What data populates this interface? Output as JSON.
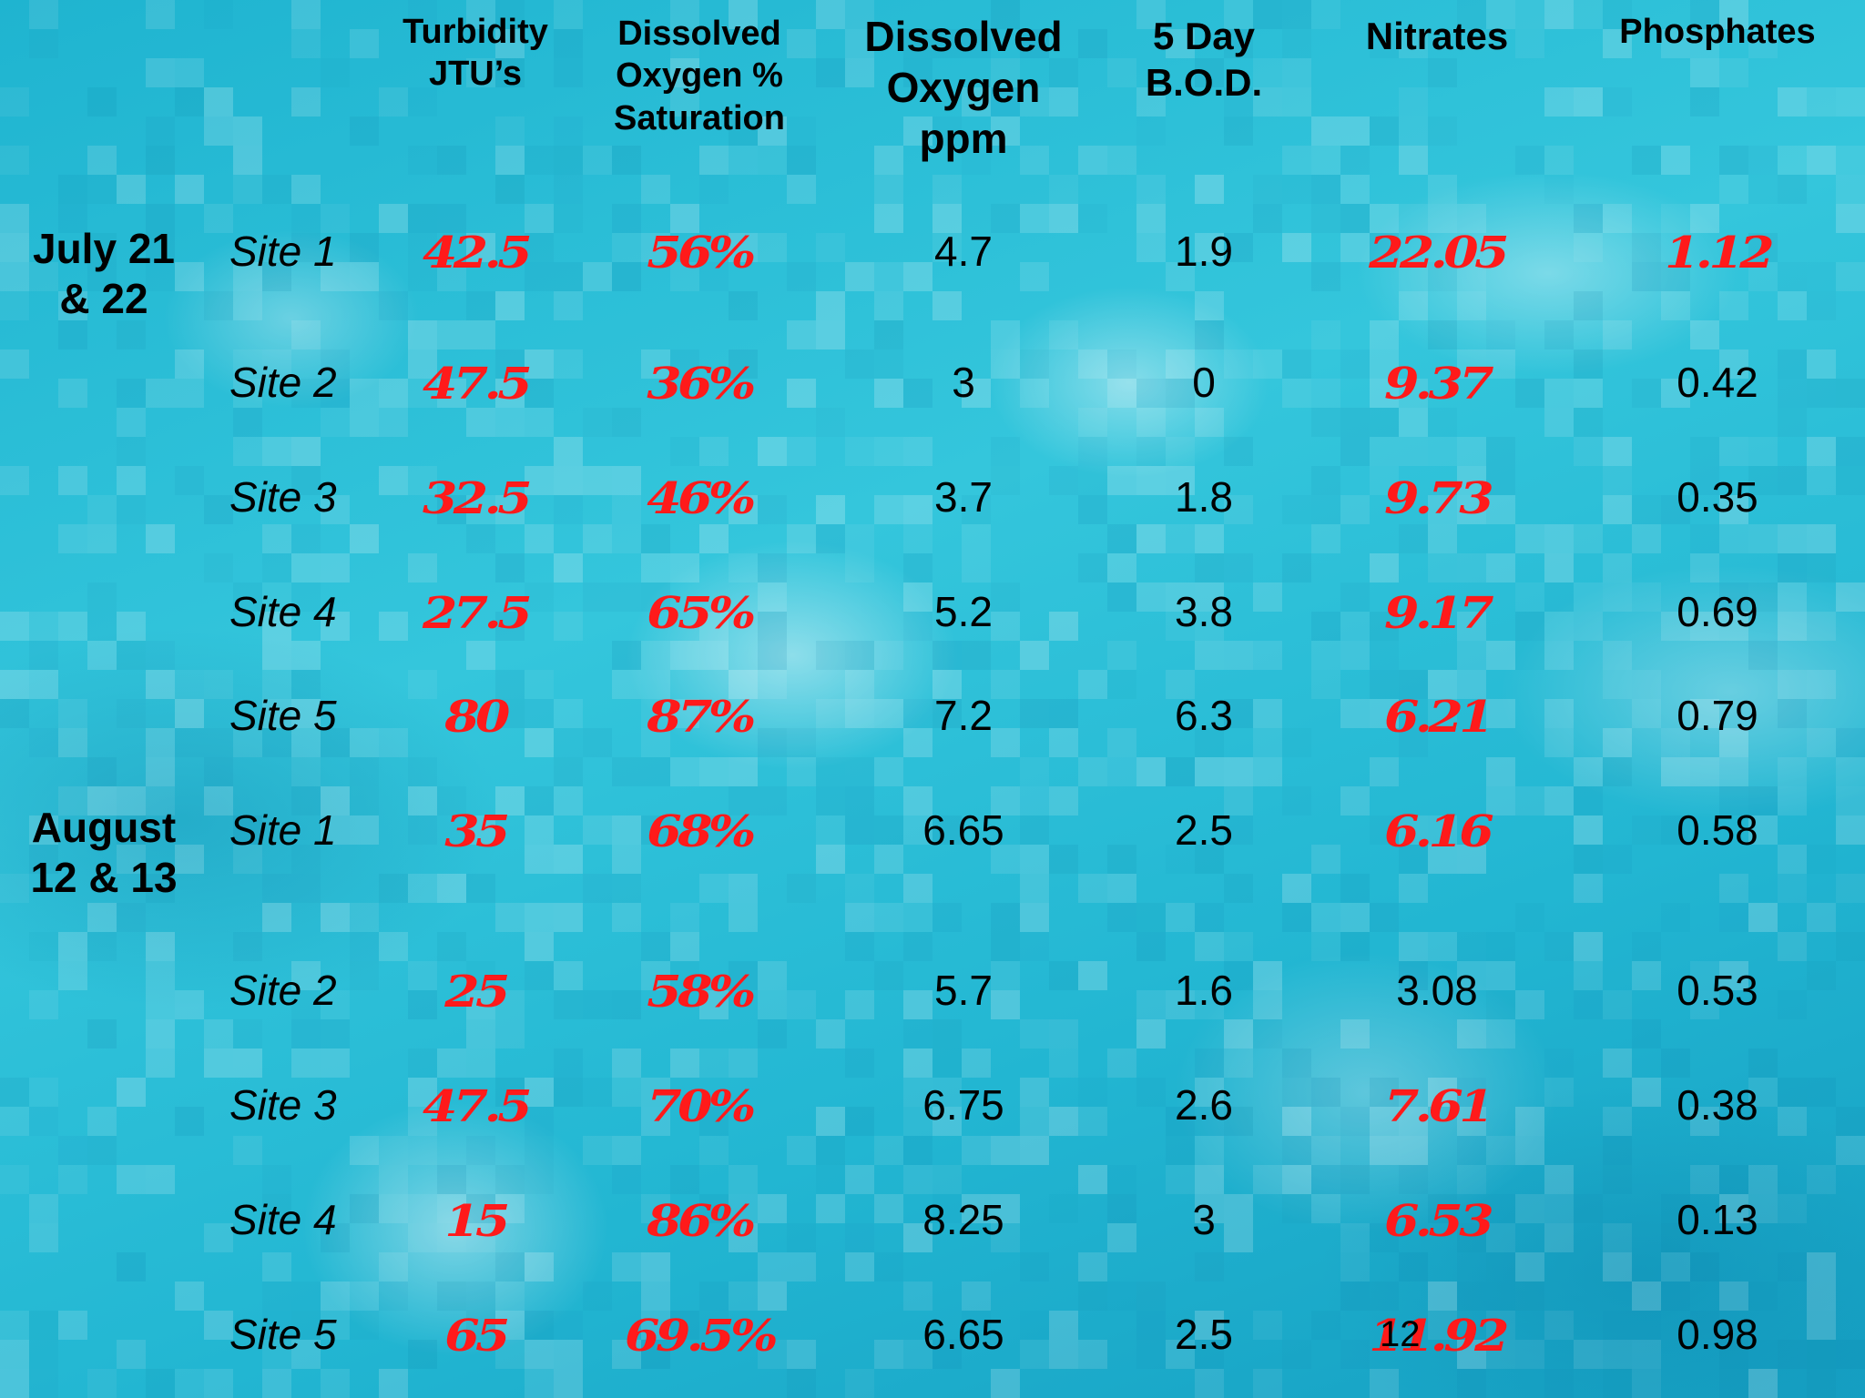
{
  "colors": {
    "background": "#22bad2",
    "highlight": "#ff1a1a",
    "text": "#000000"
  },
  "headers": [
    {
      "key": "turbidity",
      "lines": [
        "Turbidity",
        "JTU’s"
      ]
    },
    {
      "key": "do_sat",
      "lines": [
        "Dissolved",
        "Oxygen %",
        "Saturation"
      ]
    },
    {
      "key": "do_ppm",
      "lines": [
        "Dissolved",
        "Oxygen",
        "ppm"
      ]
    },
    {
      "key": "bod",
      "lines": [
        "5 Day",
        "B.O.D."
      ]
    },
    {
      "key": "nitrates",
      "lines": [
        "Nitrates"
      ]
    },
    {
      "key": "phosphates",
      "lines": [
        "Phosphates"
      ]
    }
  ],
  "groups": [
    {
      "date_lines": [
        "July 21",
        "& 22"
      ],
      "rows": [
        {
          "site": "Site 1",
          "values": [
            "42.5",
            "56%",
            "4.7",
            "1.9",
            "22.05",
            "1.12"
          ],
          "highlight": [
            true,
            true,
            false,
            false,
            true,
            true
          ]
        },
        {
          "site": "Site 2",
          "values": [
            "47.5",
            "36%",
            "3",
            "0",
            "9.37",
            "0.42"
          ],
          "highlight": [
            true,
            true,
            false,
            false,
            true,
            false
          ]
        },
        {
          "site": "Site 3",
          "values": [
            "32.5",
            "46%",
            "3.7",
            "1.8",
            "9.73",
            "0.35"
          ],
          "highlight": [
            true,
            true,
            false,
            false,
            true,
            false
          ]
        },
        {
          "site": "Site 4",
          "values": [
            "27.5",
            "65%",
            "5.2",
            "3.8",
            "9.17",
            "0.69"
          ],
          "highlight": [
            true,
            true,
            false,
            false,
            true,
            false
          ]
        },
        {
          "site": "Site 5",
          "values": [
            "80",
            "87%",
            "7.2",
            "6.3",
            "6.21",
            "0.79"
          ],
          "highlight": [
            true,
            true,
            false,
            false,
            true,
            false
          ]
        }
      ]
    },
    {
      "date_lines": [
        "August",
        "12 & 13"
      ],
      "rows": [
        {
          "site": "Site 1",
          "values": [
            "35",
            "68%",
            "6.65",
            "2.5",
            "6.16",
            "0.58"
          ],
          "highlight": [
            true,
            true,
            false,
            false,
            true,
            false
          ]
        },
        {
          "site": "Site 2",
          "values": [
            "25",
            "58%",
            "5.7",
            "1.6",
            "3.08",
            "0.53"
          ],
          "highlight": [
            true,
            true,
            false,
            false,
            false,
            false
          ]
        },
        {
          "site": "Site 3",
          "values": [
            "47.5",
            "70%",
            "6.75",
            "2.6",
            "7.61",
            "0.38"
          ],
          "highlight": [
            true,
            true,
            false,
            false,
            true,
            false
          ]
        },
        {
          "site": "Site 4",
          "values": [
            "15",
            "86%",
            "8.25",
            "3",
            "6.53",
            "0.13"
          ],
          "highlight": [
            true,
            true,
            false,
            false,
            true,
            false
          ]
        },
        {
          "site": "Site 5",
          "values": [
            "65",
            "69.5%",
            "6.65",
            "2.5",
            "11.92",
            "0.98"
          ],
          "highlight": [
            true,
            true,
            false,
            false,
            true,
            false
          ]
        }
      ]
    }
  ],
  "slide_number": "12"
}
